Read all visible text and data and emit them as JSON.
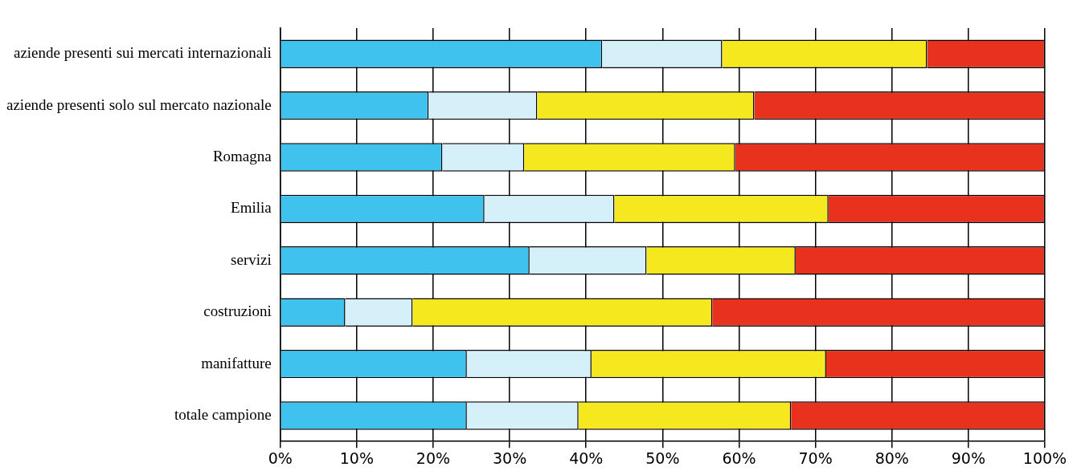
{
  "chart_data": {
    "type": "bar",
    "orientation": "horizontal",
    "stacked": true,
    "grid": "x",
    "legend": false,
    "categories": [
      "aziende presenti sui mercati internazionali",
      "aziende presenti solo sul mercato nazionale",
      "Romagna",
      "Emilia",
      "servizi",
      "costruzioni",
      "manifatture",
      "totale campione"
    ],
    "series": [
      {
        "color": "#3fc3ee",
        "values": [
          42.1,
          19.4,
          21.2,
          26.7,
          32.6,
          8.5,
          24.4,
          24.4
        ]
      },
      {
        "color": "#d6f0fa",
        "values": [
          15.7,
          14.2,
          10.7,
          17.0,
          15.3,
          8.8,
          16.3,
          14.6
        ]
      },
      {
        "color": "#f5e81e",
        "values": [
          26.8,
          28.4,
          27.6,
          28.0,
          19.5,
          39.2,
          30.7,
          27.8
        ]
      },
      {
        "color": "#e8321e",
        "values": [
          15.4,
          38.0,
          40.5,
          28.3,
          32.6,
          43.5,
          28.6,
          33.2
        ]
      }
    ],
    "xlim": [
      0,
      100
    ],
    "xticks": [
      {
        "value": 0,
        "label": "0%"
      },
      {
        "value": 10,
        "label": "10%"
      },
      {
        "value": 20,
        "label": "20%"
      },
      {
        "value": 30,
        "label": "30%"
      },
      {
        "value": 40,
        "label": "40%"
      },
      {
        "value": 50,
        "label": "50%"
      },
      {
        "value": 60,
        "label": "60%"
      },
      {
        "value": 70,
        "label": "70%"
      },
      {
        "value": 80,
        "label": "80%"
      },
      {
        "value": 90,
        "label": "90%"
      },
      {
        "value": 100,
        "label": "100%"
      }
    ]
  }
}
